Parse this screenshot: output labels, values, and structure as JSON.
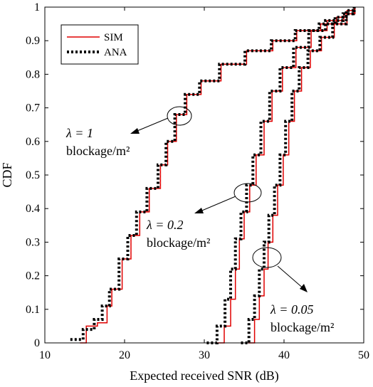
{
  "chart_data": {
    "type": "line",
    "title": "",
    "xlabel": "Expected received SNR (dB)",
    "ylabel": "CDF",
    "xlim": [
      10,
      50
    ],
    "ylim": [
      0,
      1
    ],
    "xticks": [
      "10",
      "20",
      "30",
      "40",
      "50"
    ],
    "yticks": [
      "0",
      "0.1",
      "0.2",
      "0.3",
      "0.4",
      "0.5",
      "0.6",
      "0.7",
      "0.8",
      "0.9",
      "1"
    ],
    "legend": {
      "placement": "top-left",
      "entries": [
        {
          "label": "SIM",
          "color": "#e00000",
          "style": "solid"
        },
        {
          "label": "ANA",
          "color": "#000000",
          "style": "dotted"
        }
      ]
    },
    "series": [
      {
        "name": "SIM",
        "group": "lambda=1",
        "x": [
          14.4,
          15.2,
          16.6,
          17.8,
          18.4,
          19.7,
          20.8,
          21.9,
          23.1,
          24.5,
          25.4,
          26.5,
          27.8,
          29.6,
          32.1,
          35.3,
          38.6,
          41.6,
          44.6,
          46.6,
          47.9,
          48.9
        ],
        "y": [
          0,
          0.05,
          0.06,
          0.11,
          0.16,
          0.25,
          0.32,
          0.39,
          0.46,
          0.53,
          0.6,
          0.68,
          0.74,
          0.78,
          0.83,
          0.87,
          0.9,
          0.93,
          0.95,
          0.97,
          0.99,
          1
        ]
      },
      {
        "name": "ANA",
        "group": "lambda=1",
        "x": [
          13.2,
          14.8,
          16.2,
          17.2,
          18.1,
          19.3,
          20.4,
          21.5,
          22.8,
          24.2,
          25.2,
          26.3,
          27.6,
          29.4,
          31.9,
          35.1,
          38.4,
          41.4,
          44.4,
          46.4,
          47.8,
          48.8
        ],
        "y": [
          0.01,
          0.04,
          0.07,
          0.11,
          0.16,
          0.25,
          0.32,
          0.39,
          0.46,
          0.53,
          0.6,
          0.68,
          0.74,
          0.78,
          0.83,
          0.87,
          0.9,
          0.93,
          0.95,
          0.97,
          0.99,
          1
        ]
      },
      {
        "name": "SIM",
        "group": "lambda=0.2",
        "x": [
          31.5,
          32.5,
          33.3,
          33.9,
          34.4,
          35.0,
          35.7,
          36.5,
          37.5,
          38.5,
          39.8,
          41.5,
          43.4,
          45.4,
          47.5,
          48.8
        ],
        "y": [
          0,
          0.05,
          0.13,
          0.22,
          0.31,
          0.39,
          0.47,
          0.56,
          0.66,
          0.75,
          0.82,
          0.88,
          0.93,
          0.96,
          0.98,
          1
        ]
      },
      {
        "name": "ANA",
        "group": "lambda=0.2",
        "x": [
          30.3,
          31.6,
          32.6,
          33.3,
          33.9,
          34.6,
          35.3,
          36.1,
          37.1,
          38.2,
          39.5,
          41.2,
          43.1,
          45.2,
          47.4,
          48.7
        ],
        "y": [
          0,
          0.05,
          0.13,
          0.22,
          0.31,
          0.39,
          0.47,
          0.56,
          0.66,
          0.75,
          0.82,
          0.88,
          0.93,
          0.96,
          0.98,
          1
        ]
      },
      {
        "name": "SIM",
        "group": "lambda=0.05",
        "x": [
          35.5,
          36.3,
          36.9,
          37.5,
          38.0,
          38.6,
          39.2,
          39.9,
          40.6,
          41.3,
          42.2,
          43.3,
          44.7,
          46.3,
          47.9,
          48.9
        ],
        "y": [
          0,
          0.07,
          0.14,
          0.22,
          0.3,
          0.38,
          0.47,
          0.56,
          0.66,
          0.75,
          0.82,
          0.87,
          0.91,
          0.95,
          0.98,
          1
        ]
      },
      {
        "name": "ANA",
        "group": "lambda=0.05",
        "x": [
          34.6,
          35.6,
          36.3,
          36.9,
          37.5,
          38.1,
          38.8,
          39.5,
          40.2,
          41.0,
          41.9,
          43.0,
          44.5,
          46.1,
          47.8,
          48.8
        ],
        "y": [
          0,
          0.07,
          0.14,
          0.22,
          0.3,
          0.38,
          0.47,
          0.56,
          0.66,
          0.75,
          0.82,
          0.87,
          0.91,
          0.95,
          0.98,
          1
        ]
      }
    ],
    "annotations": [
      {
        "line1": "λ = 1",
        "line2": "blockage/m²"
      },
      {
        "line1": "λ = 0.2",
        "line2": "blockage/m²"
      },
      {
        "line1": "λ = 0.05",
        "line2": "blockage/m²"
      }
    ],
    "grid": false,
    "colors": {
      "sim": "#e00000",
      "ana": "#000000",
      "axis": "#000000"
    }
  }
}
